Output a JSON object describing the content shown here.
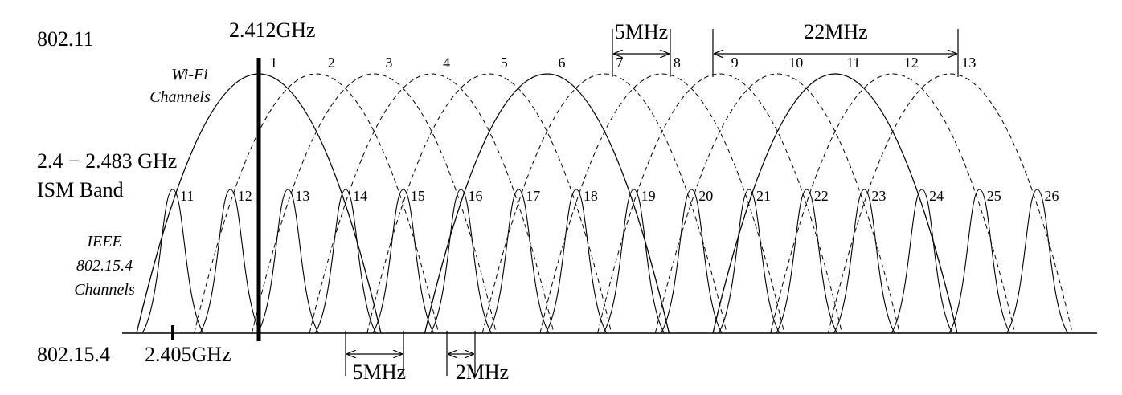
{
  "labels": {
    "standard_top": "802.11",
    "standard_bottom": "802.15.4",
    "freq_wifi_start": "2.412GHz",
    "freq_zigbee_start": "2.405GHz",
    "band_line1": "2.4 − 2.483 GHz",
    "band_line2": "ISM Band",
    "wifi_line1": "Wi-Fi",
    "wifi_line2": "Channels",
    "ieee_line1": "IEEE",
    "ieee_line2": "802.15.4",
    "ieee_line3": "Channels",
    "spacing_wifi": "5MHz",
    "width_wifi": "22MHz",
    "spacing_zigbee": "5MHz",
    "width_zigbee": "2MHz"
  },
  "diagram_data": {
    "wifi_channels": [
      {
        "n": "1",
        "solid": true
      },
      {
        "n": "2",
        "solid": false
      },
      {
        "n": "3",
        "solid": false
      },
      {
        "n": "4",
        "solid": false
      },
      {
        "n": "5",
        "solid": false
      },
      {
        "n": "6",
        "solid": true
      },
      {
        "n": "7",
        "solid": false
      },
      {
        "n": "8",
        "solid": false
      },
      {
        "n": "9",
        "solid": false
      },
      {
        "n": "10",
        "solid": false
      },
      {
        "n": "11",
        "solid": true
      },
      {
        "n": "12",
        "solid": false
      },
      {
        "n": "13",
        "solid": false
      }
    ],
    "zigbee_channels": [
      "11",
      "12",
      "13",
      "14",
      "15",
      "16",
      "17",
      "18",
      "19",
      "20",
      "21",
      "22",
      "23",
      "24",
      "25",
      "26"
    ]
  }
}
